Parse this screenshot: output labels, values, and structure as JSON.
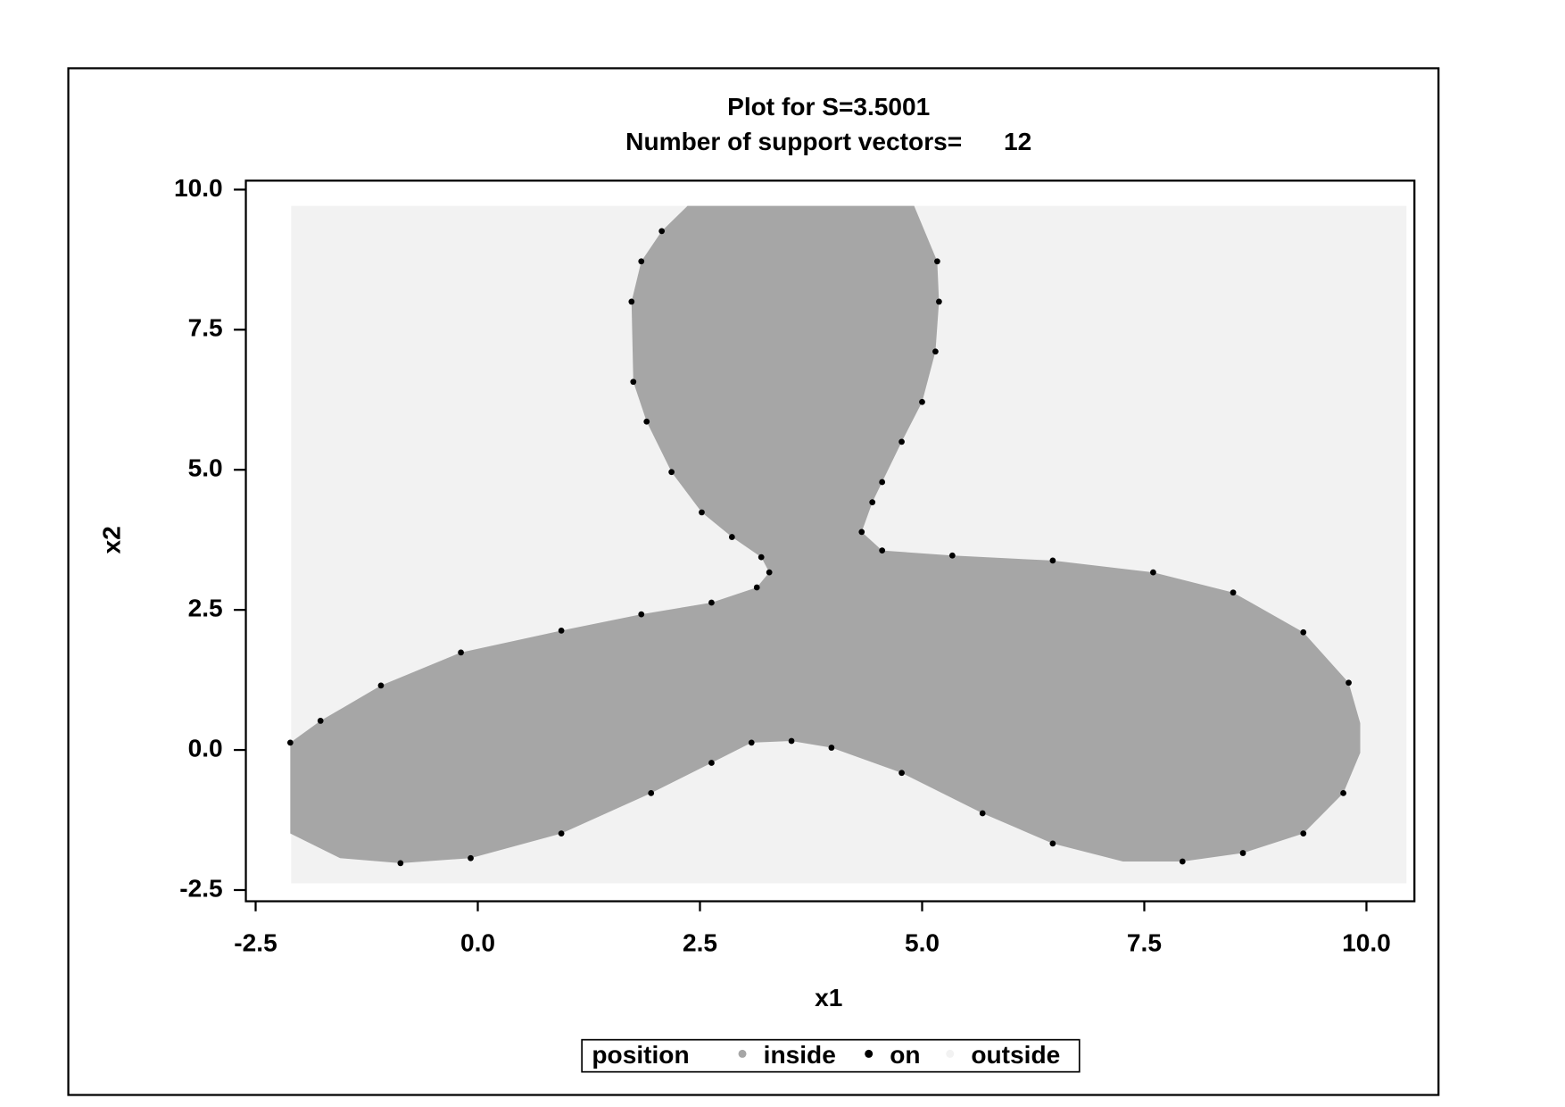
{
  "chart_data": {
    "type": "region",
    "title": "Plot for S=3.5001",
    "subtitle": "Number of support vectors=      12",
    "xlabel": "x1",
    "ylabel": "x2",
    "xlim": [
      -2.61,
      10.54
    ],
    "ylim": [
      -2.7,
      10.16
    ],
    "xticks": [
      -2.5,
      {
        "value": 0,
        "label": "0.0"
      },
      2.5,
      {
        "value": 5,
        "label": "5.0"
      },
      7.5,
      {
        "value": 10,
        "label": "10.0"
      }
    ],
    "yticks": [
      {
        "value": -2.5,
        "label": "-2.5"
      },
      {
        "value": 0,
        "label": "0.0"
      },
      2.5,
      {
        "value": 5,
        "label": "5.0"
      },
      7.5,
      {
        "value": 10,
        "label": "10.0"
      }
    ],
    "legend_title": "position",
    "series": [
      {
        "name": "outside",
        "color": "#f2f2f2",
        "x": [
          -2.1,
          10.45
        ],
        "y": [
          -2.38,
          9.71
        ]
      },
      {
        "name": "inside",
        "color": "#a6a6a6",
        "x": [
          4.91,
          5.17,
          5.19,
          5.15,
          5.0,
          4.77,
          4.55,
          4.44,
          4.32,
          4.55,
          5.34,
          6.47,
          7.6,
          8.5,
          9.29,
          9.8,
          9.93,
          9.93,
          9.74,
          9.29,
          8.61,
          7.93,
          7.26,
          6.47,
          5.68,
          4.77,
          3.98,
          3.53,
          3.08,
          2.63,
          1.95,
          0.94,
          -0.08,
          -0.87,
          -1.55,
          -2.11,
          -2.11,
          -1.77,
          -1.09,
          -0.19,
          0.94,
          1.84,
          2.63,
          3.14,
          3.28,
          3.19,
          2.86,
          2.52,
          2.18,
          1.9,
          1.75,
          1.73,
          1.84,
          2.07,
          2.36
        ],
        "y": [
          9.71,
          8.72,
          8.0,
          7.11,
          6.21,
          5.5,
          4.78,
          4.42,
          3.89,
          3.56,
          3.47,
          3.38,
          3.17,
          2.81,
          2.1,
          1.2,
          0.48,
          -0.05,
          -0.77,
          -1.49,
          -1.84,
          -1.99,
          -1.99,
          -1.67,
          -1.13,
          -0.41,
          0.04,
          0.16,
          0.13,
          -0.23,
          -0.77,
          -1.49,
          -1.93,
          -2.02,
          -1.93,
          -1.49,
          0.13,
          0.52,
          1.15,
          1.74,
          2.13,
          2.42,
          2.63,
          2.9,
          3.17,
          3.44,
          3.8,
          4.24,
          4.96,
          5.86,
          6.57,
          8.0,
          8.72,
          9.26,
          9.71
        ]
      },
      {
        "name": "on",
        "color": "#000000",
        "x": [
          5.17,
          5.19,
          5.15,
          5.0,
          4.77,
          4.55,
          4.44,
          4.32,
          4.55,
          5.34,
          6.47,
          7.6,
          8.5,
          9.29,
          9.8,
          9.74,
          9.29,
          8.61,
          7.93,
          6.47,
          5.68,
          4.77,
          3.98,
          3.53,
          3.08,
          2.63,
          1.95,
          0.94,
          -0.08,
          -0.87,
          -2.11,
          -1.77,
          -1.09,
          -0.19,
          0.94,
          1.84,
          2.63,
          3.14,
          3.28,
          3.19,
          2.86,
          2.52,
          2.18,
          1.9,
          1.75,
          1.73,
          1.84,
          2.07
        ],
        "y": [
          8.72,
          8.0,
          7.11,
          6.21,
          5.5,
          4.78,
          4.42,
          3.89,
          3.56,
          3.47,
          3.38,
          3.17,
          2.81,
          2.1,
          1.2,
          -0.77,
          -1.49,
          -1.84,
          -1.99,
          -1.67,
          -1.13,
          -0.41,
          0.04,
          0.16,
          0.13,
          -0.23,
          -0.77,
          -1.49,
          -1.93,
          -2.02,
          0.13,
          0.52,
          1.15,
          1.74,
          2.13,
          2.42,
          2.63,
          2.9,
          3.17,
          3.44,
          3.8,
          4.24,
          4.96,
          5.86,
          6.57,
          8.0,
          8.72,
          9.26
        ]
      }
    ]
  }
}
